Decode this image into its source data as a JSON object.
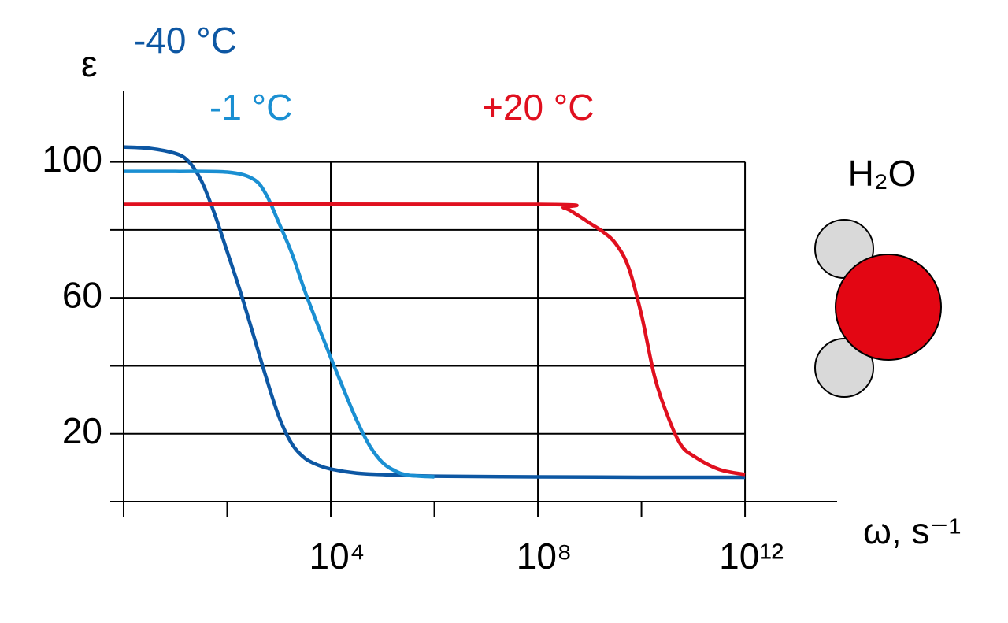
{
  "chart_data": {
    "type": "line",
    "x_label": "ω, s⁻¹",
    "y_label": "ε",
    "annotation": "H₂O",
    "log_x": true,
    "grid": true,
    "xlim": [
      1,
      60000000000000.0
    ],
    "xticks": [
      {
        "value": 10000.0,
        "label": "10⁴"
      },
      {
        "value": 100000000.0,
        "label": "10⁸"
      },
      {
        "value": 1000000000000.0,
        "label": "10¹²"
      }
    ],
    "x_minor_ticks": [
      1,
      100,
      1000000.0,
      10000000000.0
    ],
    "ylim": [
      0,
      121
    ],
    "yticks": [
      20,
      60,
      100
    ],
    "y_minor_ticks": [
      0,
      40,
      80
    ],
    "series": [
      {
        "name": "-40 °C",
        "color": "#0d57a3",
        "x": [
          1,
          3.16,
          10,
          17.8,
          31.6,
          56.2,
          100,
          178,
          316,
          562,
          1000.0,
          1780.0,
          3160.0,
          5620.0,
          10000.0,
          31600.0,
          100000.0,
          1000000.0,
          100000000.0,
          10000000000.0,
          1000000000000.0
        ],
        "values": [
          104.4,
          104,
          102.5,
          100.2,
          94.5,
          85,
          73.6,
          62,
          49.4,
          36.7,
          25,
          17,
          12.8,
          10.8,
          9.6,
          8.4,
          8,
          7.5,
          7.3,
          7.2,
          7.2
        ]
      },
      {
        "name": "-1 °C",
        "color": "#1a8fd2",
        "x": [
          1,
          10,
          100,
          316,
          562,
          1000.0,
          1780.0,
          3160.0,
          5620.0,
          10000.0,
          17800.0,
          31600.0,
          56200.0,
          100000.0,
          178000.0,
          316000.0,
          1000000.0
        ],
        "values": [
          97.2,
          97.2,
          97,
          95,
          90.5,
          82,
          73,
          62,
          52,
          42.4,
          33,
          24,
          16.5,
          11.5,
          9,
          7.8,
          7.3
        ]
      },
      {
        "name": "+20 °C",
        "color": "#e0101f",
        "x": [
          1,
          100000000.0,
          316000000.0,
          562000000.0,
          1000000000.0,
          1780000000.0,
          3160000000.0,
          5620000000.0,
          10000000000.0,
          17800000000.0,
          31600000000.0,
          56200000000.0,
          100000000000.0,
          316000000000.0,
          1000000000000.0
        ],
        "values": [
          87.5,
          87.5,
          86.5,
          84.5,
          82,
          79.5,
          76,
          69,
          55,
          37,
          25.5,
          17,
          13.5,
          9.5,
          8
        ]
      }
    ]
  }
}
